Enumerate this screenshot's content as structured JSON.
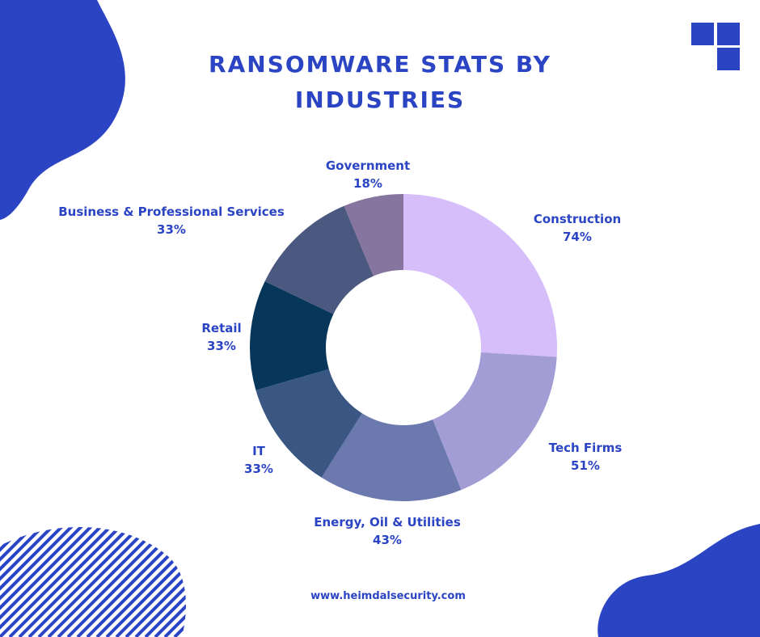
{
  "colors": {
    "accent": "#2b44c4",
    "blob": "#2b44c4",
    "logo": "#2b44c4"
  },
  "logo_icon": "four-squares-logo-icon",
  "chart_data": {
    "type": "pie",
    "title": "RANSOMWARE STATS BY INDUSTRIES",
    "title_lines": [
      "RANSOMWARE STATS BY",
      "INDUSTRIES"
    ],
    "donut": true,
    "slices": [
      {
        "label": "Construction",
        "value": 74,
        "display": "74%",
        "color": "#d6befb"
      },
      {
        "label": "Tech Firms",
        "value": 51,
        "display": "51%",
        "color": "#a39dd6"
      },
      {
        "label": "Energy, Oil & Utilities",
        "value": 43,
        "display": "43%",
        "color": "#6c79ae"
      },
      {
        "label": "IT",
        "value": 33,
        "display": "33%",
        "color": "#3a5784"
      },
      {
        "label": "Retail",
        "value": 33,
        "display": "33%",
        "color": "#06375b"
      },
      {
        "label": "Business & Professional Services",
        "value": 33,
        "display": "33%",
        "color": "#4b587f"
      },
      {
        "label": "Government",
        "value": 18,
        "display": "18%",
        "color": "#85759f"
      }
    ]
  },
  "footer": "www.heimdalsecurity.com"
}
